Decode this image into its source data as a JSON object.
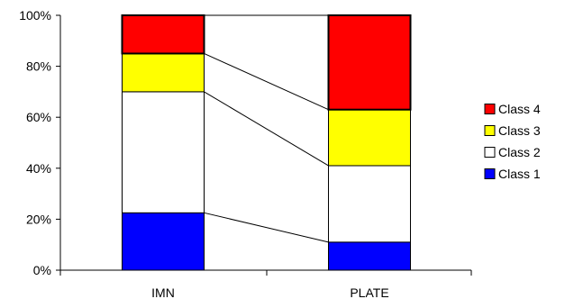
{
  "chart_data": {
    "type": "bar",
    "stacked": true,
    "percent_stacked": true,
    "series_lines": true,
    "categories": [
      "IMN",
      "PLATE"
    ],
    "series": [
      {
        "name": "Class 1",
        "values": [
          22.5,
          11
        ],
        "color": "#0000ff"
      },
      {
        "name": "Class 2",
        "values": [
          47.5,
          30
        ],
        "color": "#ffffff"
      },
      {
        "name": "Class 3",
        "values": [
          15,
          22
        ],
        "color": "#ffff00"
      },
      {
        "name": "Class 4",
        "values": [
          15,
          37
        ],
        "color": "#ff0000"
      }
    ],
    "ylim": [
      0,
      100
    ],
    "yticks": [
      0,
      20,
      40,
      60,
      80,
      100
    ],
    "ytick_labels": [
      "0%",
      "20%",
      "40%",
      "60%",
      "80%",
      "100%"
    ],
    "legend_position": "right",
    "legend_order": [
      "Class 4",
      "Class 3",
      "Class 2",
      "Class 1"
    ],
    "grid": false
  }
}
